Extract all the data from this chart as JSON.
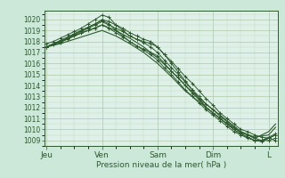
{
  "xlabel": "Pression niveau de la mer( hPa )",
  "bg_color": "#cce8d8",
  "plot_bg_color": "#dff0e8",
  "grid_major_color": "#aacaaa",
  "grid_minor_color": "#c0dcc0",
  "line_color": "#2d5a2d",
  "ylim": [
    1008.5,
    1020.8
  ],
  "yticks": [
    1009,
    1010,
    1011,
    1012,
    1013,
    1014,
    1015,
    1016,
    1017,
    1018,
    1019,
    1020
  ],
  "day_labels": [
    "Jeu",
    "Ven",
    "Sam",
    "Dim",
    "L"
  ],
  "day_positions": [
    0,
    24,
    48,
    72,
    96
  ],
  "xlim": [
    -1,
    100
  ],
  "lines": [
    {
      "x": [
        0,
        3,
        6,
        9,
        12,
        15,
        18,
        21,
        24,
        27,
        30,
        33,
        36,
        39,
        42,
        45,
        48,
        51,
        54,
        57,
        60,
        63,
        66,
        69,
        72,
        75,
        78,
        81,
        84,
        87,
        90,
        93,
        96,
        99
      ],
      "y": [
        1017.5,
        1017.8,
        1018.0,
        1018.3,
        1018.7,
        1019.0,
        1019.3,
        1019.6,
        1020.0,
        1019.8,
        1019.5,
        1019.2,
        1018.8,
        1018.5,
        1018.2,
        1018.0,
        1017.5,
        1016.8,
        1016.2,
        1015.5,
        1014.8,
        1014.2,
        1013.5,
        1012.8,
        1012.2,
        1011.5,
        1011.0,
        1010.5,
        1010.0,
        1009.8,
        1009.5,
        1009.3,
        1009.2,
        1009.0
      ],
      "marker": "+"
    },
    {
      "x": [
        0,
        3,
        6,
        9,
        12,
        15,
        18,
        21,
        24,
        27,
        30,
        33,
        36,
        39,
        42,
        45,
        48,
        51,
        54,
        57,
        60,
        63,
        66,
        69,
        72,
        75,
        78,
        81,
        84,
        87,
        90,
        93,
        96,
        99
      ],
      "y": [
        1017.5,
        1017.8,
        1018.0,
        1018.3,
        1018.6,
        1018.9,
        1019.2,
        1019.5,
        1019.8,
        1019.5,
        1019.2,
        1018.9,
        1018.5,
        1018.2,
        1017.9,
        1017.5,
        1017.0,
        1016.3,
        1015.6,
        1015.0,
        1014.3,
        1013.6,
        1013.0,
        1012.3,
        1011.8,
        1011.2,
        1010.7,
        1010.2,
        1009.7,
        1009.5,
        1009.2,
        1009.0,
        1009.0,
        1009.2
      ],
      "marker": "+"
    },
    {
      "x": [
        0,
        3,
        6,
        9,
        12,
        15,
        18,
        21,
        24,
        27,
        30,
        33,
        36,
        39,
        42,
        45,
        48,
        51,
        54,
        57,
        60,
        63,
        66,
        69,
        72,
        75,
        78,
        81,
        84,
        87,
        90,
        93,
        96,
        99
      ],
      "y": [
        1017.8,
        1018.0,
        1018.3,
        1018.6,
        1018.9,
        1019.2,
        1019.6,
        1020.0,
        1020.4,
        1020.2,
        1019.5,
        1019.0,
        1018.5,
        1018.2,
        1018.0,
        1017.8,
        1017.5,
        1016.8,
        1016.0,
        1015.2,
        1014.4,
        1013.6,
        1012.8,
        1012.0,
        1011.5,
        1011.0,
        1010.5,
        1010.0,
        1009.6,
        1009.3,
        1009.0,
        1008.9,
        1009.2,
        1009.5
      ],
      "marker": "+"
    },
    {
      "x": [
        0,
        3,
        6,
        9,
        12,
        15,
        18,
        21,
        24,
        27,
        30,
        33,
        36,
        39,
        42,
        45,
        48,
        51,
        54,
        57,
        60,
        63,
        66,
        69,
        72,
        75,
        78,
        81,
        84,
        87,
        90,
        93,
        96,
        99
      ],
      "y": [
        1017.5,
        1017.7,
        1017.9,
        1018.2,
        1018.5,
        1018.8,
        1019.0,
        1019.2,
        1019.5,
        1019.2,
        1018.8,
        1018.4,
        1018.0,
        1017.6,
        1017.2,
        1016.8,
        1016.3,
        1015.6,
        1015.0,
        1014.3,
        1013.6,
        1013.0,
        1012.4,
        1011.8,
        1011.3,
        1010.8,
        1010.3,
        1009.8,
        1009.5,
        1009.2,
        1009.0,
        1009.0,
        1009.2,
        1009.5
      ],
      "marker": "+"
    },
    {
      "x": [
        0,
        3,
        6,
        9,
        12,
        15,
        18,
        21,
        24,
        27,
        30,
        33,
        36,
        39,
        42,
        45,
        48,
        51,
        54,
        57,
        60,
        63,
        66,
        69,
        72,
        75,
        78,
        81,
        84,
        87,
        90,
        93,
        96,
        99
      ],
      "y": [
        1017.5,
        1017.8,
        1018.1,
        1018.4,
        1018.7,
        1019.0,
        1019.3,
        1019.6,
        1019.9,
        1019.6,
        1019.0,
        1018.5,
        1018.0,
        1017.6,
        1017.3,
        1017.0,
        1016.7,
        1016.0,
        1015.3,
        1014.7,
        1014.0,
        1013.3,
        1012.7,
        1012.0,
        1011.5,
        1011.0,
        1010.5,
        1010.0,
        1009.6,
        1009.3,
        1009.0,
        1009.0,
        1009.3,
        1009.6
      ],
      "marker": "+"
    },
    {
      "x": [
        0,
        6,
        12,
        18,
        24,
        30,
        36,
        42,
        48,
        54,
        60,
        66,
        72,
        78,
        84,
        90,
        96,
        99
      ],
      "y": [
        1017.5,
        1018.0,
        1018.5,
        1019.0,
        1019.5,
        1019.0,
        1018.3,
        1017.5,
        1016.5,
        1015.3,
        1014.0,
        1012.8,
        1011.8,
        1010.8,
        1009.8,
        1009.3,
        1009.5,
        1010.2
      ],
      "marker": null
    },
    {
      "x": [
        0,
        6,
        12,
        18,
        24,
        30,
        36,
        42,
        48,
        54,
        60,
        66,
        72,
        78,
        84,
        90,
        96,
        99
      ],
      "y": [
        1017.5,
        1017.8,
        1018.2,
        1018.6,
        1019.0,
        1018.5,
        1017.8,
        1017.0,
        1016.0,
        1014.8,
        1013.5,
        1012.5,
        1011.5,
        1010.5,
        1009.8,
        1009.2,
        1009.8,
        1010.5
      ],
      "marker": null
    }
  ]
}
